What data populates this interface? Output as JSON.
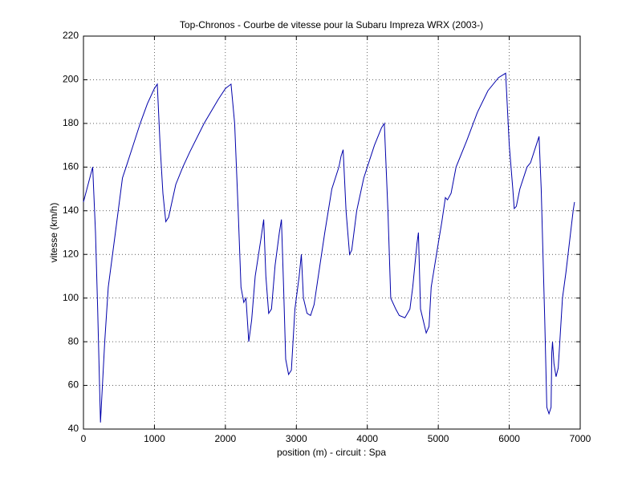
{
  "chart_data": {
    "type": "line",
    "title": "Top-Chronos - Courbe de vitesse pour la Subaru Impreza WRX (2003-)",
    "x_label": "position (m) - circuit : Spa",
    "y_label": "vitesse (km/h)",
    "color": "#0000aa",
    "x": [
      0,
      130,
      170,
      200,
      240,
      300,
      350,
      450,
      550,
      600,
      700,
      800,
      900,
      1000,
      1040,
      1080,
      1120,
      1160,
      1200,
      1300,
      1400,
      1500,
      1700,
      1900,
      2000,
      2080,
      2130,
      2180,
      2220,
      2260,
      2290,
      2330,
      2370,
      2420,
      2500,
      2540,
      2570,
      2610,
      2650,
      2700,
      2760,
      2790,
      2820,
      2850,
      2890,
      2930,
      2980,
      3040,
      3070,
      3100,
      3150,
      3200,
      3250,
      3300,
      3400,
      3500,
      3600,
      3630,
      3660,
      3700,
      3750,
      3780,
      3850,
      3950,
      4000,
      4100,
      4200,
      4240,
      4290,
      4330,
      4400,
      4450,
      4530,
      4600,
      4640,
      4700,
      4720,
      4750,
      4800,
      4830,
      4870,
      4900,
      5000,
      5050,
      5100,
      5130,
      5180,
      5250,
      5400,
      5550,
      5700,
      5850,
      5950,
      6000,
      6050,
      6070,
      6100,
      6150,
      6250,
      6300,
      6400,
      6420,
      6450,
      6500,
      6530,
      6560,
      6590,
      6600,
      6610,
      6630,
      6660,
      6690,
      6750,
      6800,
      6900,
      6920
    ],
    "values": [
      144,
      160,
      130,
      95,
      43,
      80,
      105,
      130,
      155,
      160,
      170,
      180,
      189,
      196,
      198,
      170,
      148,
      135,
      137,
      152,
      160,
      167,
      180,
      191,
      196,
      198,
      180,
      140,
      105,
      98,
      100,
      80,
      90,
      110,
      127,
      136,
      110,
      93,
      95,
      115,
      130,
      136,
      105,
      72,
      65,
      67,
      95,
      110,
      120,
      100,
      93,
      92,
      97,
      108,
      130,
      150,
      160,
      165,
      168,
      140,
      120,
      122,
      140,
      155,
      160,
      170,
      178,
      180,
      140,
      100,
      95,
      92,
      91,
      95,
      105,
      125,
      130,
      95,
      88,
      84,
      87,
      105,
      125,
      135,
      146,
      145,
      148,
      160,
      172,
      185,
      195,
      201,
      203,
      170,
      150,
      141,
      142,
      150,
      160,
      162,
      172,
      174,
      150,
      90,
      50,
      47,
      50,
      75,
      80,
      70,
      64,
      68,
      100,
      112,
      140,
      144
    ],
    "xlim": [
      0,
      7000
    ],
    "ylim": [
      40,
      220
    ],
    "xticks": [
      0,
      1000,
      2000,
      3000,
      4000,
      5000,
      6000,
      7000
    ],
    "yticks": [
      40,
      60,
      80,
      100,
      120,
      140,
      160,
      180,
      200,
      220
    ],
    "grid": true
  }
}
